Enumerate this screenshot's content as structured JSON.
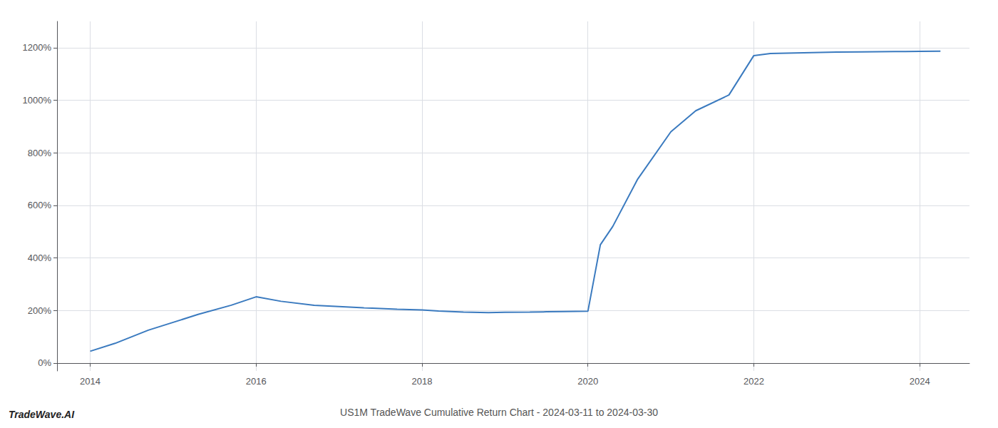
{
  "chart_data": {
    "type": "line",
    "title": "US1M TradeWave Cumulative Return Chart - 2024-03-11 to 2024-03-30",
    "annotations": [
      "TradeWave.AI"
    ],
    "x": [
      2014.0,
      2014.3,
      2014.7,
      2015.0,
      2015.3,
      2015.7,
      2016.0,
      2016.3,
      2016.7,
      2017.0,
      2017.3,
      2017.7,
      2018.0,
      2018.2,
      2018.5,
      2018.8,
      2019.0,
      2019.3,
      2019.5,
      2019.7,
      2020.0,
      2020.15,
      2020.3,
      2020.6,
      2021.0,
      2021.3,
      2021.7,
      2022.0,
      2022.2,
      2022.5,
      2022.8,
      2023.0,
      2023.3,
      2023.7,
      2024.0,
      2024.25
    ],
    "values": [
      45,
      75,
      125,
      155,
      185,
      220,
      252,
      235,
      220,
      215,
      210,
      205,
      202,
      198,
      194,
      192,
      193,
      194,
      195,
      196,
      197,
      450,
      520,
      700,
      880,
      960,
      1020,
      1170,
      1178,
      1180,
      1182,
      1183,
      1184,
      1185,
      1186,
      1187
    ],
    "color": "#3a7abf",
    "xlim": [
      2013.6,
      2024.6
    ],
    "ylim": [
      -30,
      1300
    ],
    "xticks": [
      2014,
      2016,
      2018,
      2020,
      2022,
      2024
    ],
    "yticks": [
      {
        "value": 0,
        "label": "0%"
      },
      {
        "value": 200,
        "label": "200%"
      },
      {
        "value": 400,
        "label": "400%"
      },
      {
        "value": 600,
        "label": "600%"
      },
      {
        "value": 800,
        "label": "800%"
      },
      {
        "value": 1000,
        "label": "1000%"
      },
      {
        "value": 1200,
        "label": "1200%"
      }
    ],
    "grid": true
  }
}
